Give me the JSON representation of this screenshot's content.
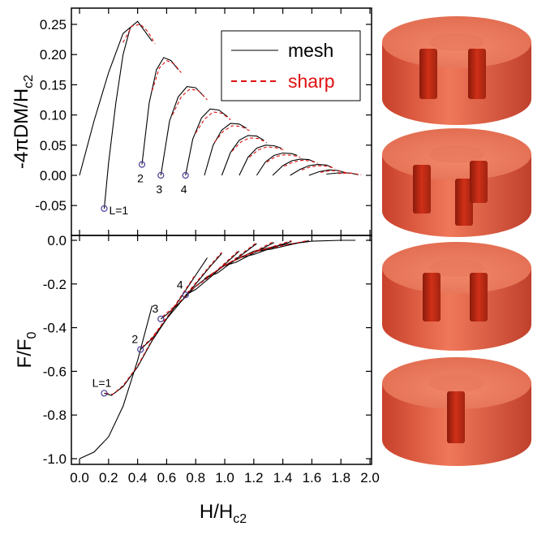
{
  "chart_data": [
    {
      "type": "line",
      "ylabel": {
        "main": "-4πDM/H",
        "sub": "c2"
      },
      "xlim": [
        -0.056,
        2.011
      ],
      "ylim": [
        -0.0995,
        0.2769
      ],
      "yticks": [
        -0.05,
        {
          "value": 0,
          "label": "0.00"
        },
        0.05,
        {
          "value": 0.1,
          "label": "0.10"
        },
        0.15,
        {
          "value": 0.2,
          "label": "0.20"
        },
        0.25
      ],
      "legend": "upper right",
      "series": [
        {
          "name": "mesh",
          "color": "#000000",
          "dashed": false,
          "branches": [
            {
              "x": [
                0,
                0.1,
                0.2,
                0.3,
                0.4,
                0.5
              ],
              "values": [
                0,
                0.09,
                0.17,
                0.235,
                0.255,
                0.222
              ]
            },
            {
              "x": [
                0.17,
                0.2,
                0.25,
                0.3,
                0.35
              ],
              "values": [
                -0.055,
                0.02,
                0.12,
                0.2,
                0.245
              ]
            },
            {
              "x": [
                0.43,
                0.48,
                0.53,
                0.58,
                0.63,
                0.68
              ],
              "values": [
                0.018,
                0.12,
                0.175,
                0.195,
                0.19,
                0.175
              ]
            },
            {
              "x": [
                0.56,
                0.62,
                0.68,
                0.74,
                0.8,
                0.86
              ],
              "values": [
                0,
                0.09,
                0.13,
                0.147,
                0.145,
                0.13
              ]
            },
            {
              "x": [
                0.73,
                0.78,
                0.84,
                0.9,
                0.96,
                1.02
              ],
              "values": [
                0,
                0.06,
                0.095,
                0.11,
                0.108,
                0.097
              ]
            },
            {
              "x": [
                0.86,
                0.92,
                0.98,
                1.04,
                1.1,
                1.15
              ],
              "values": [
                0,
                0.05,
                0.075,
                0.086,
                0.085,
                0.078
              ]
            },
            {
              "x": [
                0.98,
                1.04,
                1.1,
                1.16,
                1.22,
                1.27
              ],
              "values": [
                0,
                0.038,
                0.058,
                0.066,
                0.065,
                0.058
              ]
            },
            {
              "x": [
                1.1,
                1.16,
                1.22,
                1.28,
                1.34,
                1.39
              ],
              "values": [
                0,
                0.03,
                0.045,
                0.05,
                0.049,
                0.045
              ]
            },
            {
              "x": [
                1.22,
                1.28,
                1.34,
                1.4,
                1.46,
                1.5
              ],
              "values": [
                0,
                0.022,
                0.033,
                0.037,
                0.036,
                0.033
              ]
            },
            {
              "x": [
                1.33,
                1.4,
                1.46,
                1.52,
                1.58,
                1.62
              ],
              "values": [
                0,
                0.016,
                0.024,
                0.027,
                0.026,
                0.022
              ]
            },
            {
              "x": [
                1.45,
                1.52,
                1.58,
                1.64,
                1.7,
                1.74
              ],
              "values": [
                0,
                0.01,
                0.016,
                0.018,
                0.017,
                0.013
              ]
            },
            {
              "x": [
                1.58,
                1.65,
                1.72,
                1.78,
                1.84
              ],
              "values": [
                0,
                0.006,
                0.009,
                0.008,
                0.004
              ]
            },
            {
              "x": [
                1.7,
                1.78,
                1.86,
                1.92
              ],
              "values": [
                0.002,
                0.004,
                0.004,
                0.001
              ]
            }
          ]
        },
        {
          "name": "sharp",
          "color": "#e01010",
          "dashed": true,
          "branches": [
            {
              "x": [
                0.3,
                0.36,
                0.42,
                0.47,
                0.52
              ],
              "values": [
                0.22,
                0.247,
                0.25,
                0.238,
                0.218
              ]
            },
            {
              "x": [
                0.5,
                0.55,
                0.6,
                0.65,
                0.7
              ],
              "values": [
                0.14,
                0.178,
                0.19,
                0.185,
                0.17
              ]
            },
            {
              "x": [
                0.64,
                0.7,
                0.76,
                0.82,
                0.88
              ],
              "values": [
                0.1,
                0.13,
                0.143,
                0.14,
                0.125
              ]
            },
            {
              "x": [
                0.8,
                0.86,
                0.92,
                0.98,
                1.04
              ],
              "values": [
                0.07,
                0.093,
                0.105,
                0.103,
                0.092
              ]
            },
            {
              "x": [
                0.93,
                0.99,
                1.05,
                1.11,
                1.17
              ],
              "values": [
                0.055,
                0.073,
                0.082,
                0.081,
                0.074
              ]
            },
            {
              "x": [
                1.05,
                1.11,
                1.17,
                1.23,
                1.29
              ],
              "values": [
                0.04,
                0.055,
                0.062,
                0.061,
                0.054
              ]
            },
            {
              "x": [
                1.17,
                1.23,
                1.29,
                1.35,
                1.41
              ],
              "values": [
                0.03,
                0.042,
                0.047,
                0.046,
                0.042
              ]
            },
            {
              "x": [
                1.29,
                1.35,
                1.41,
                1.47,
                1.52
              ],
              "values": [
                0.022,
                0.031,
                0.034,
                0.033,
                0.03
              ]
            },
            {
              "x": [
                1.41,
                1.47,
                1.53,
                1.59,
                1.64
              ],
              "values": [
                0.015,
                0.022,
                0.025,
                0.024,
                0.02
              ]
            },
            {
              "x": [
                1.53,
                1.59,
                1.65,
                1.71,
                1.76
              ],
              "values": [
                0.009,
                0.014,
                0.016,
                0.015,
                0.011
              ]
            },
            {
              "x": [
                1.66,
                1.73,
                1.79,
                1.86
              ],
              "values": [
                0.005,
                0.008,
                0.007,
                0.003
              ]
            },
            {
              "x": [
                1.78,
                1.86,
                1.94
              ],
              "values": [
                0.003,
                0.004,
                0.001
              ]
            }
          ]
        }
      ],
      "annotations": [
        {
          "text": "L=1",
          "x": 0.17,
          "y": -0.055
        },
        {
          "text": "2",
          "x": 0.43,
          "y": 0.018
        },
        {
          "text": "3",
          "x": 0.56,
          "y": 0
        },
        {
          "text": "4",
          "x": 0.73,
          "y": 0
        }
      ]
    },
    {
      "type": "line",
      "ylabel": {
        "main": "F/F",
        "sub": "0"
      },
      "xlabel": {
        "main": "H/H",
        "sub": "c2"
      },
      "xlim": [
        -0.056,
        2.011
      ],
      "ylim": [
        -1.026,
        0.0223
      ],
      "xticks": [
        {
          "value": 0,
          "label": "0.0"
        },
        0.2,
        0.4,
        0.6,
        0.8,
        {
          "value": 1,
          "label": "1.0"
        },
        1.2,
        1.4,
        1.6,
        1.8,
        {
          "value": 2,
          "label": "2.0"
        }
      ],
      "yticks": [
        {
          "value": 0,
          "label": "0.0"
        },
        -0.2,
        -0.4,
        -0.6,
        -0.8,
        {
          "value": -1,
          "label": "-1.0"
        }
      ],
      "series": [
        {
          "name": "mesh",
          "color": "#000000",
          "dashed": false,
          "branches": [
            {
              "x": [
                0,
                0.1,
                0.2,
                0.3,
                0.4,
                0.5
              ],
              "values": [
                -1,
                -0.97,
                -0.9,
                -0.76,
                -0.55,
                -0.3
              ]
            },
            {
              "x": [
                0.17,
                0.22,
                0.3,
                0.4,
                0.5,
                0.6,
                0.7,
                0.8,
                0.9,
                1.0,
                1.2,
                1.4,
                1.6,
                1.8,
                1.9
              ],
              "values": [
                -0.7,
                -0.71,
                -0.67,
                -0.58,
                -0.46,
                -0.36,
                -0.28,
                -0.21,
                -0.16,
                -0.115,
                -0.05,
                -0.02,
                -0.004,
                0,
                0
              ]
            },
            {
              "x": [
                0.42,
                0.5,
                0.6,
                0.7,
                0.8,
                0.88
              ],
              "values": [
                -0.5,
                -0.45,
                -0.36,
                -0.26,
                -0.16,
                -0.08
              ]
            },
            {
              "x": [
                0.56,
                0.6,
                0.7,
                0.8,
                0.9,
                0.98
              ],
              "values": [
                -0.36,
                -0.34,
                -0.28,
                -0.2,
                -0.12,
                -0.06
              ]
            },
            {
              "x": [
                0.73,
                0.8,
                0.9,
                1.0,
                1.1
              ],
              "values": [
                -0.25,
                -0.225,
                -0.17,
                -0.11,
                -0.05
              ]
            },
            {
              "x": [
                0.86,
                0.95,
                1.05,
                1.15,
                1.22
              ],
              "values": [
                -0.175,
                -0.15,
                -0.1,
                -0.05,
                -0.015
              ]
            },
            {
              "x": [
                0.98,
                1.08,
                1.18,
                1.28,
                1.34
              ],
              "values": [
                -0.12,
                -0.1,
                -0.065,
                -0.03,
                -0.01
              ]
            },
            {
              "x": [
                1.1,
                1.2,
                1.3,
                1.4,
                1.46
              ],
              "values": [
                -0.08,
                -0.065,
                -0.04,
                -0.018,
                -0.005
              ]
            },
            {
              "x": [
                1.22,
                1.32,
                1.42,
                1.52,
                1.58
              ],
              "values": [
                -0.05,
                -0.04,
                -0.025,
                -0.01,
                -0.002
              ]
            }
          ]
        },
        {
          "name": "sharp",
          "color": "#e01010",
          "dashed": true,
          "branches": [
            {
              "x": [
                0.18,
                0.23,
                0.3,
                0.4,
                0.5,
                0.6
              ],
              "values": [
                -0.7,
                -0.705,
                -0.665,
                -0.575,
                -0.455,
                -0.35
              ]
            },
            {
              "x": [
                0.43,
                0.5,
                0.6,
                0.7,
                0.8
              ],
              "values": [
                -0.49,
                -0.445,
                -0.355,
                -0.255,
                -0.155
              ]
            },
            {
              "x": [
                0.57,
                0.7,
                0.8,
                0.9,
                0.98
              ],
              "values": [
                -0.35,
                -0.275,
                -0.195,
                -0.115,
                -0.055
              ]
            },
            {
              "x": [
                0.74,
                0.9,
                1.0,
                1.1
              ],
              "values": [
                -0.24,
                -0.165,
                -0.105,
                -0.045
              ]
            },
            {
              "x": [
                0.87,
                1.05,
                1.15,
                1.22
              ],
              "values": [
                -0.17,
                -0.095,
                -0.045,
                -0.01
              ]
            },
            {
              "x": [
                0.99,
                1.18,
                1.28,
                1.34
              ],
              "values": [
                -0.115,
                -0.06,
                -0.025,
                -0.005
              ]
            },
            {
              "x": [
                1.11,
                1.3,
                1.4,
                1.46
              ],
              "values": [
                -0.075,
                -0.035,
                -0.014,
                -0.002
              ]
            },
            {
              "x": [
                1.23,
                1.42,
                1.52,
                1.58
              ],
              "values": [
                -0.047,
                -0.022,
                -0.008,
                0
              ]
            }
          ]
        }
      ],
      "annotations": [
        {
          "text": "L=1",
          "x": 0.17,
          "y": -0.7
        },
        {
          "text": "2",
          "x": 0.42,
          "y": -0.5
        },
        {
          "text": "3",
          "x": 0.56,
          "y": -0.36
        },
        {
          "text": "4",
          "x": 0.73,
          "y": -0.25
        }
      ]
    }
  ]
}
